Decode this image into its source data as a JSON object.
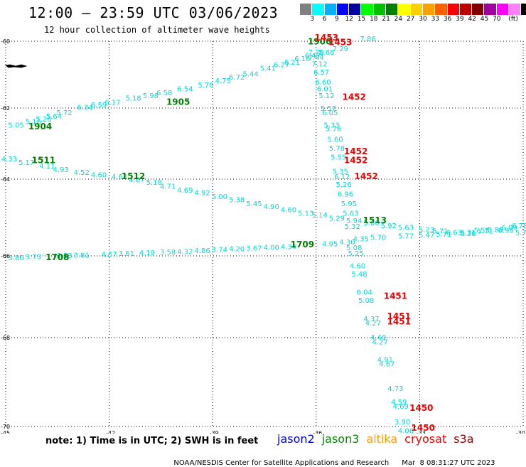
{
  "header": {
    "title": "12:00 — 23:59 UTC 03/06/2023",
    "subtitle": "12 hour collection of altimeter wave heights"
  },
  "colorbar": {
    "colors": [
      "#808080",
      "#00ffff",
      "#00b0ff",
      "#0000ff",
      "#0000a0",
      "#00ff00",
      "#00c000",
      "#008000",
      "#ffff00",
      "#ffd000",
      "#ffa000",
      "#ff6000",
      "#ff0000",
      "#c00000",
      "#800000",
      "#a000a0",
      "#ff00ff",
      "#ff80ff",
      "#000000"
    ],
    "labels": [
      "3",
      "6",
      "9",
      "12",
      "15",
      "18",
      "21",
      "24",
      "27",
      "30",
      "33",
      "36",
      "39",
      "42",
      "45",
      "70",
      "(ft)"
    ]
  },
  "axes": {
    "lat_ticks": [
      {
        "v": -60,
        "label": "-60"
      },
      {
        "v": -62,
        "label": "-62"
      },
      {
        "v": -64,
        "label": "-64"
      },
      {
        "v": -66,
        "label": "-66"
      },
      {
        "v": -68,
        "label": "-68"
      },
      {
        "v": -70,
        "label": "-70"
      }
    ],
    "lon_ticks": [
      {
        "v": -45,
        "label": "-45"
      },
      {
        "v": -42,
        "label": "-42"
      },
      {
        "v": -39,
        "label": "-39"
      },
      {
        "v": -36,
        "label": "-36"
      },
      {
        "v": -33,
        "label": "-33"
      },
      {
        "v": -30,
        "label": "-30"
      }
    ]
  },
  "colors": {
    "swh": "#00d8d8",
    "jason3_time": "#008000",
    "cryosat_time": "#ee0000",
    "land": "#000000",
    "grid": "#000000"
  },
  "tracks": [
    {
      "name": "track-1904-1905",
      "color": "swh",
      "points": [
        {
          "lon": -44.7,
          "lat": -62.55,
          "t": "5.05"
        },
        {
          "lon": -44.2,
          "lat": -62.45,
          "t": "5.16"
        },
        {
          "lon": -43.9,
          "lat": -62.38,
          "t": "5.26"
        },
        {
          "lon": -43.6,
          "lat": -62.3,
          "t": "5.64"
        },
        {
          "lon": -43.3,
          "lat": -62.2,
          "t": "5.72"
        },
        {
          "lon": -42.7,
          "lat": -62.05,
          "t": "6.34"
        },
        {
          "lon": -42.3,
          "lat": -61.98,
          "t": "6.59"
        },
        {
          "lon": -41.9,
          "lat": -61.9,
          "t": "6.17"
        },
        {
          "lon": -41.3,
          "lat": -61.78,
          "t": "5.18"
        },
        {
          "lon": -40.8,
          "lat": -61.7,
          "t": "5.98"
        },
        {
          "lon": -40.4,
          "lat": -61.62,
          "t": "6.58"
        },
        {
          "lon": -39.8,
          "lat": -61.5,
          "t": "6.54"
        },
        {
          "lon": -39.2,
          "lat": -61.38,
          "t": "5.76"
        },
        {
          "lon": -38.7,
          "lat": -61.25,
          "t": "4.75"
        },
        {
          "lon": -38.3,
          "lat": -61.15,
          "t": "6.72"
        },
        {
          "lon": -37.9,
          "lat": -61.05,
          "t": "5.44"
        },
        {
          "lon": -37.4,
          "lat": -60.88,
          "t": "5.41"
        },
        {
          "lon": -37.0,
          "lat": -60.78,
          "t": "6.27"
        },
        {
          "lon": -36.7,
          "lat": -60.7,
          "t": "6.21"
        },
        {
          "lon": -36.4,
          "lat": -60.6,
          "t": "6.16"
        },
        {
          "lon": -36.1,
          "lat": -60.5,
          "t": "6.47"
        },
        {
          "lon": -35.7,
          "lat": -60.4,
          "t": "5.68"
        },
        {
          "lon": -35.3,
          "lat": -60.3,
          "t": "7.29"
        },
        {
          "lon": -34.5,
          "lat": -60.0,
          "t": "7.86"
        }
      ]
    },
    {
      "name": "track-1511-1513",
      "color": "swh",
      "points": [
        {
          "lon": -44.9,
          "lat": -63.5,
          "t": "4.33"
        },
        {
          "lon": -44.4,
          "lat": -63.6,
          "t": "5.17"
        },
        {
          "lon": -43.8,
          "lat": -63.7,
          "t": "4.11"
        },
        {
          "lon": -43.4,
          "lat": -63.8,
          "t": "4.93"
        },
        {
          "lon": -42.8,
          "lat": -63.88,
          "t": "4.52"
        },
        {
          "lon": -42.3,
          "lat": -63.95,
          "t": "4.60"
        },
        {
          "lon": -41.7,
          "lat": -64.0,
          "t": "4.62"
        },
        {
          "lon": -41.2,
          "lat": -64.08,
          "t": "4.67"
        },
        {
          "lon": -40.7,
          "lat": -64.15,
          "t": "5.18"
        },
        {
          "lon": -40.3,
          "lat": -64.25,
          "t": "4.71"
        },
        {
          "lon": -39.8,
          "lat": -64.35,
          "t": "4.69"
        },
        {
          "lon": -39.3,
          "lat": -64.42,
          "t": "4.92"
        },
        {
          "lon": -38.8,
          "lat": -64.52,
          "t": "5.00"
        },
        {
          "lon": -38.3,
          "lat": -64.6,
          "t": "5.38"
        },
        {
          "lon": -37.8,
          "lat": -64.7,
          "t": "5.45"
        },
        {
          "lon": -37.3,
          "lat": -64.78,
          "t": "4.90"
        },
        {
          "lon": -36.8,
          "lat": -64.86,
          "t": "4.60"
        },
        {
          "lon": -36.3,
          "lat": -64.95,
          "t": "5.13"
        },
        {
          "lon": -35.9,
          "lat": -65.0,
          "t": "5.14"
        },
        {
          "lon": -35.4,
          "lat": -65.08,
          "t": "5.29"
        },
        {
          "lon": -34.9,
          "lat": -65.15,
          "t": "5.94"
        },
        {
          "lon": -34.4,
          "lat": -65.2,
          "t": "5.66"
        },
        {
          "lon": -33.9,
          "lat": -65.28,
          "t": "5.92"
        },
        {
          "lon": -33.4,
          "lat": -65.32,
          "t": "5.63"
        },
        {
          "lon": -32.8,
          "lat": -65.38,
          "t": "5.23"
        },
        {
          "lon": -32.4,
          "lat": -65.42,
          "t": "5.71"
        },
        {
          "lon": -32.0,
          "lat": -65.45,
          "t": "6.63"
        },
        {
          "lon": -31.6,
          "lat": -65.48,
          "t": "6.36"
        },
        {
          "lon": -31.2,
          "lat": -65.4,
          "t": "5.55"
        },
        {
          "lon": -30.8,
          "lat": -65.38,
          "t": "5.88"
        },
        {
          "lon": -30.4,
          "lat": -65.32,
          "t": "6.09"
        },
        {
          "lon": -30.1,
          "lat": -65.28,
          "t": "6.78"
        }
      ]
    },
    {
      "name": "track-1708-1709",
      "color": "swh",
      "points": [
        {
          "lon": -44.7,
          "lat": -66.1,
          "t": "3.86"
        },
        {
          "lon": -44.2,
          "lat": -66.08,
          "t": "3.73"
        },
        {
          "lon": -43.3,
          "lat": -66.05,
          "t": "3.83"
        },
        {
          "lon": -42.8,
          "lat": -66.04,
          "t": "3.81"
        },
        {
          "lon": -42.0,
          "lat": -66.02,
          "t": "4.57"
        },
        {
          "lon": -41.5,
          "lat": -66.0,
          "t": "3.61"
        },
        {
          "lon": -40.9,
          "lat": -65.98,
          "t": "4.19"
        },
        {
          "lon": -40.3,
          "lat": -65.96,
          "t": "3.58"
        },
        {
          "lon": -39.8,
          "lat": -65.95,
          "t": "4.32"
        },
        {
          "lon": -39.3,
          "lat": -65.93,
          "t": "4.86"
        },
        {
          "lon": -38.8,
          "lat": -65.9,
          "t": "3.74"
        },
        {
          "lon": -38.3,
          "lat": -65.88,
          "t": "4.20"
        },
        {
          "lon": -37.8,
          "lat": -65.86,
          "t": "3.67"
        },
        {
          "lon": -37.3,
          "lat": -65.84,
          "t": "4.00"
        },
        {
          "lon": -36.8,
          "lat": -65.82,
          "t": "4.34"
        },
        {
          "lon": -35.6,
          "lat": -65.75,
          "t": "4.95"
        },
        {
          "lon": -35.1,
          "lat": -65.7,
          "t": "4.30"
        },
        {
          "lon": -34.7,
          "lat": -65.62,
          "t": "4.35"
        },
        {
          "lon": -34.2,
          "lat": -65.58,
          "t": "5.70"
        },
        {
          "lon": -33.4,
          "lat": -65.55,
          "t": "5.77"
        },
        {
          "lon": -32.8,
          "lat": -65.52,
          "t": "5.47"
        },
        {
          "lon": -32.3,
          "lat": -65.5,
          "t": "5.71"
        },
        {
          "lon": -31.6,
          "lat": -65.45,
          "t": "6.31"
        },
        {
          "lon": -31.1,
          "lat": -65.42,
          "t": "5.71"
        },
        {
          "lon": -30.5,
          "lat": -65.4,
          "t": "6.98"
        },
        {
          "lon": -30.0,
          "lat": -65.45,
          "t": "5.71"
        }
      ]
    },
    {
      "name": "track-cryosat-descending",
      "color": "swh",
      "points": [
        {
          "lon": -36.0,
          "lat": -60.4,
          "t": "7.70"
        },
        {
          "lon": -36.0,
          "lat": -60.55,
          "t": "7.44"
        },
        {
          "lon": -35.9,
          "lat": -60.75,
          "t": "7.12"
        },
        {
          "lon": -35.85,
          "lat": -61.0,
          "t": "6.57"
        },
        {
          "lon": -35.8,
          "lat": -61.3,
          "t": "6.60"
        },
        {
          "lon": -35.75,
          "lat": -61.5,
          "t": "6.01"
        },
        {
          "lon": -35.7,
          "lat": -61.7,
          "t": "5.12"
        },
        {
          "lon": -35.65,
          "lat": -62.08,
          "t": "5.57"
        },
        {
          "lon": -35.6,
          "lat": -62.2,
          "t": "6.05"
        },
        {
          "lon": -35.55,
          "lat": -62.55,
          "t": "5.33"
        },
        {
          "lon": -35.5,
          "lat": -62.65,
          "t": "5.76"
        },
        {
          "lon": -35.45,
          "lat": -62.95,
          "t": "5.60"
        },
        {
          "lon": -35.4,
          "lat": -63.2,
          "t": "5.78"
        },
        {
          "lon": -35.35,
          "lat": -63.45,
          "t": "5.55"
        },
        {
          "lon": -35.3,
          "lat": -63.85,
          "t": "5.35"
        },
        {
          "lon": -35.25,
          "lat": -64.0,
          "t": "6.12"
        },
        {
          "lon": -35.2,
          "lat": -64.2,
          "t": "5.26"
        },
        {
          "lon": -35.15,
          "lat": -64.45,
          "t": "6.96"
        },
        {
          "lon": -35.05,
          "lat": -64.7,
          "t": "5.95"
        },
        {
          "lon": -35.0,
          "lat": -64.95,
          "t": "5.63"
        },
        {
          "lon": -34.95,
          "lat": -65.3,
          "t": "5.32"
        },
        {
          "lon": -34.9,
          "lat": -65.85,
          "t": "5.08"
        },
        {
          "lon": -34.85,
          "lat": -66.0,
          "t": "5.25"
        },
        {
          "lon": -34.8,
          "lat": -66.3,
          "t": "4.60"
        },
        {
          "lon": -34.75,
          "lat": -66.5,
          "t": "5.48"
        },
        {
          "lon": -34.6,
          "lat": -66.95,
          "t": "6.04"
        },
        {
          "lon": -34.55,
          "lat": -67.15,
          "t": "5.08"
        },
        {
          "lon": -34.4,
          "lat": -67.6,
          "t": "4.37"
        },
        {
          "lon": -34.35,
          "lat": -67.7,
          "t": "4.27"
        },
        {
          "lon": -34.2,
          "lat": -68.05,
          "t": "4.40"
        },
        {
          "lon": -34.15,
          "lat": -68.15,
          "t": "4.27"
        },
        {
          "lon": -34.0,
          "lat": -68.55,
          "t": "4.91"
        },
        {
          "lon": -33.95,
          "lat": -68.65,
          "t": "4.67"
        },
        {
          "lon": -33.7,
          "lat": -69.2,
          "t": "4.73"
        },
        {
          "lon": -33.6,
          "lat": -69.5,
          "t": "4.59"
        },
        {
          "lon": -33.55,
          "lat": -69.6,
          "t": "4.69"
        },
        {
          "lon": -33.5,
          "lat": -69.95,
          "t": "3.90"
        },
        {
          "lon": -33.4,
          "lat": -70.15,
          "t": "4.06"
        },
        {
          "lon": -33.3,
          "lat": -70.4,
          "t": "3.17"
        },
        {
          "lon": -33.25,
          "lat": -70.55,
          "t": "2.71"
        }
      ]
    }
  ],
  "time_labels": [
    {
      "lon": -44.0,
      "lat": -62.6,
      "t": "1904",
      "color": "jason3_time"
    },
    {
      "lon": -40.0,
      "lat": -61.9,
      "t": "1905",
      "color": "jason3_time"
    },
    {
      "lon": -35.9,
      "lat": -60.1,
      "t": "1906",
      "color": "jason3_time"
    },
    {
      "lon": -43.9,
      "lat": -63.55,
      "t": "1511",
      "color": "jason3_time"
    },
    {
      "lon": -41.3,
      "lat": -64.0,
      "t": "1512",
      "color": "jason3_time"
    },
    {
      "lon": -34.3,
      "lat": -65.15,
      "t": "1513",
      "color": "jason3_time"
    },
    {
      "lon": -43.5,
      "lat": -66.1,
      "t": "1708",
      "color": "jason3_time"
    },
    {
      "lon": -36.4,
      "lat": -65.78,
      "t": "1709",
      "color": "jason3_time"
    },
    {
      "lon": -35.7,
      "lat": -59.98,
      "t": "1453",
      "color": "cryosat_time"
    },
    {
      "lon": -35.3,
      "lat": -60.12,
      "t": "1453",
      "color": "cryosat_time"
    },
    {
      "lon": -34.9,
      "lat": -61.75,
      "t": "1452",
      "color": "cryosat_time"
    },
    {
      "lon": -34.85,
      "lat": -63.3,
      "t": "1452",
      "color": "cryosat_time"
    },
    {
      "lon": -34.85,
      "lat": -63.55,
      "t": "1452",
      "color": "cryosat_time"
    },
    {
      "lon": -34.55,
      "lat": -64.0,
      "t": "1452",
      "color": "cryosat_time"
    },
    {
      "lon": -33.7,
      "lat": -67.05,
      "t": "1451",
      "color": "cryosat_time"
    },
    {
      "lon": -33.6,
      "lat": -67.55,
      "t": "1451",
      "color": "cryosat_time"
    },
    {
      "lon": -33.6,
      "lat": -67.68,
      "t": "1451",
      "color": "cryosat_time"
    },
    {
      "lon": -32.95,
      "lat": -69.65,
      "t": "1450",
      "color": "cryosat_time"
    },
    {
      "lon": -32.9,
      "lat": -70.1,
      "t": "1450",
      "color": "cryosat_time"
    },
    {
      "lon": -32.85,
      "lat": -70.6,
      "t": "1450",
      "color": "cryosat_time"
    }
  ],
  "note": "note: 1) Time is in UTC; 2) SWH is in feet",
  "satellites": [
    {
      "name": "jason2",
      "color": "#0000dd"
    },
    {
      "name": "jason3",
      "color": "#008800"
    },
    {
      "name": "altika",
      "color": "#ff9900"
    },
    {
      "name": "cryosat",
      "color": "#ee0000"
    },
    {
      "name": "s3a",
      "color": "#880000"
    }
  ],
  "footer": {
    "credit": "NOAA/NESDIS Center for Satellite Applications and Research",
    "timestamp": "Mar  8 08:31:27 UTC 2023"
  }
}
